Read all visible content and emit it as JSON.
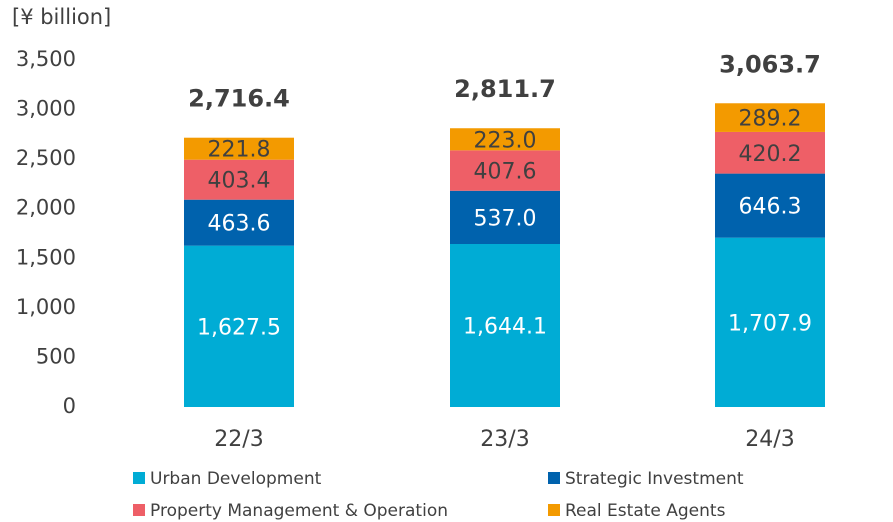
{
  "chart_data": {
    "type": "stacked_bar",
    "y_axis_label": "[¥ billion]",
    "categories": [
      "22/3",
      "23/3",
      "24/3"
    ],
    "series": [
      {
        "name": "Urban Development",
        "color": "#00acd5",
        "label_color": "#ffffff",
        "values": [
          1627.5,
          1644.1,
          1707.9
        ],
        "value_labels": [
          "1,627.5",
          "1,644.1",
          "1,707.9"
        ]
      },
      {
        "name": "Strategic Investment",
        "color": "#0062ad",
        "label_color": "#ffffff",
        "values": [
          463.6,
          537.0,
          646.3
        ],
        "value_labels": [
          "463.6",
          "537.0",
          "646.3"
        ]
      },
      {
        "name": "Property Management & Operation",
        "color": "#ee5f67",
        "label_color": "#404040",
        "values": [
          403.4,
          407.6,
          420.2
        ],
        "value_labels": [
          "403.4",
          "407.6",
          "420.2"
        ]
      },
      {
        "name": "Real Estate Agents",
        "color": "#f39a00",
        "label_color": "#404040",
        "values": [
          221.8,
          223.0,
          289.2
        ],
        "value_labels": [
          "221.8",
          "223.0",
          "289.2"
        ]
      }
    ],
    "totals": [
      2716.4,
      2811.7,
      3063.7
    ],
    "total_labels": [
      "2,716.4",
      "2,811.7",
      "3,063.7"
    ],
    "ylim": [
      0,
      3500
    ],
    "yticks": [
      0,
      500,
      {
        "value": 1000,
        "label": "1,000"
      },
      {
        "value": 1500,
        "label": "1,500"
      },
      {
        "value": 2000,
        "label": "2,000"
      },
      {
        "value": 2500,
        "label": "2,500"
      },
      {
        "value": 3000,
        "label": "3,000"
      },
      {
        "value": 3500,
        "label": "3,500"
      }
    ],
    "grid": false
  }
}
